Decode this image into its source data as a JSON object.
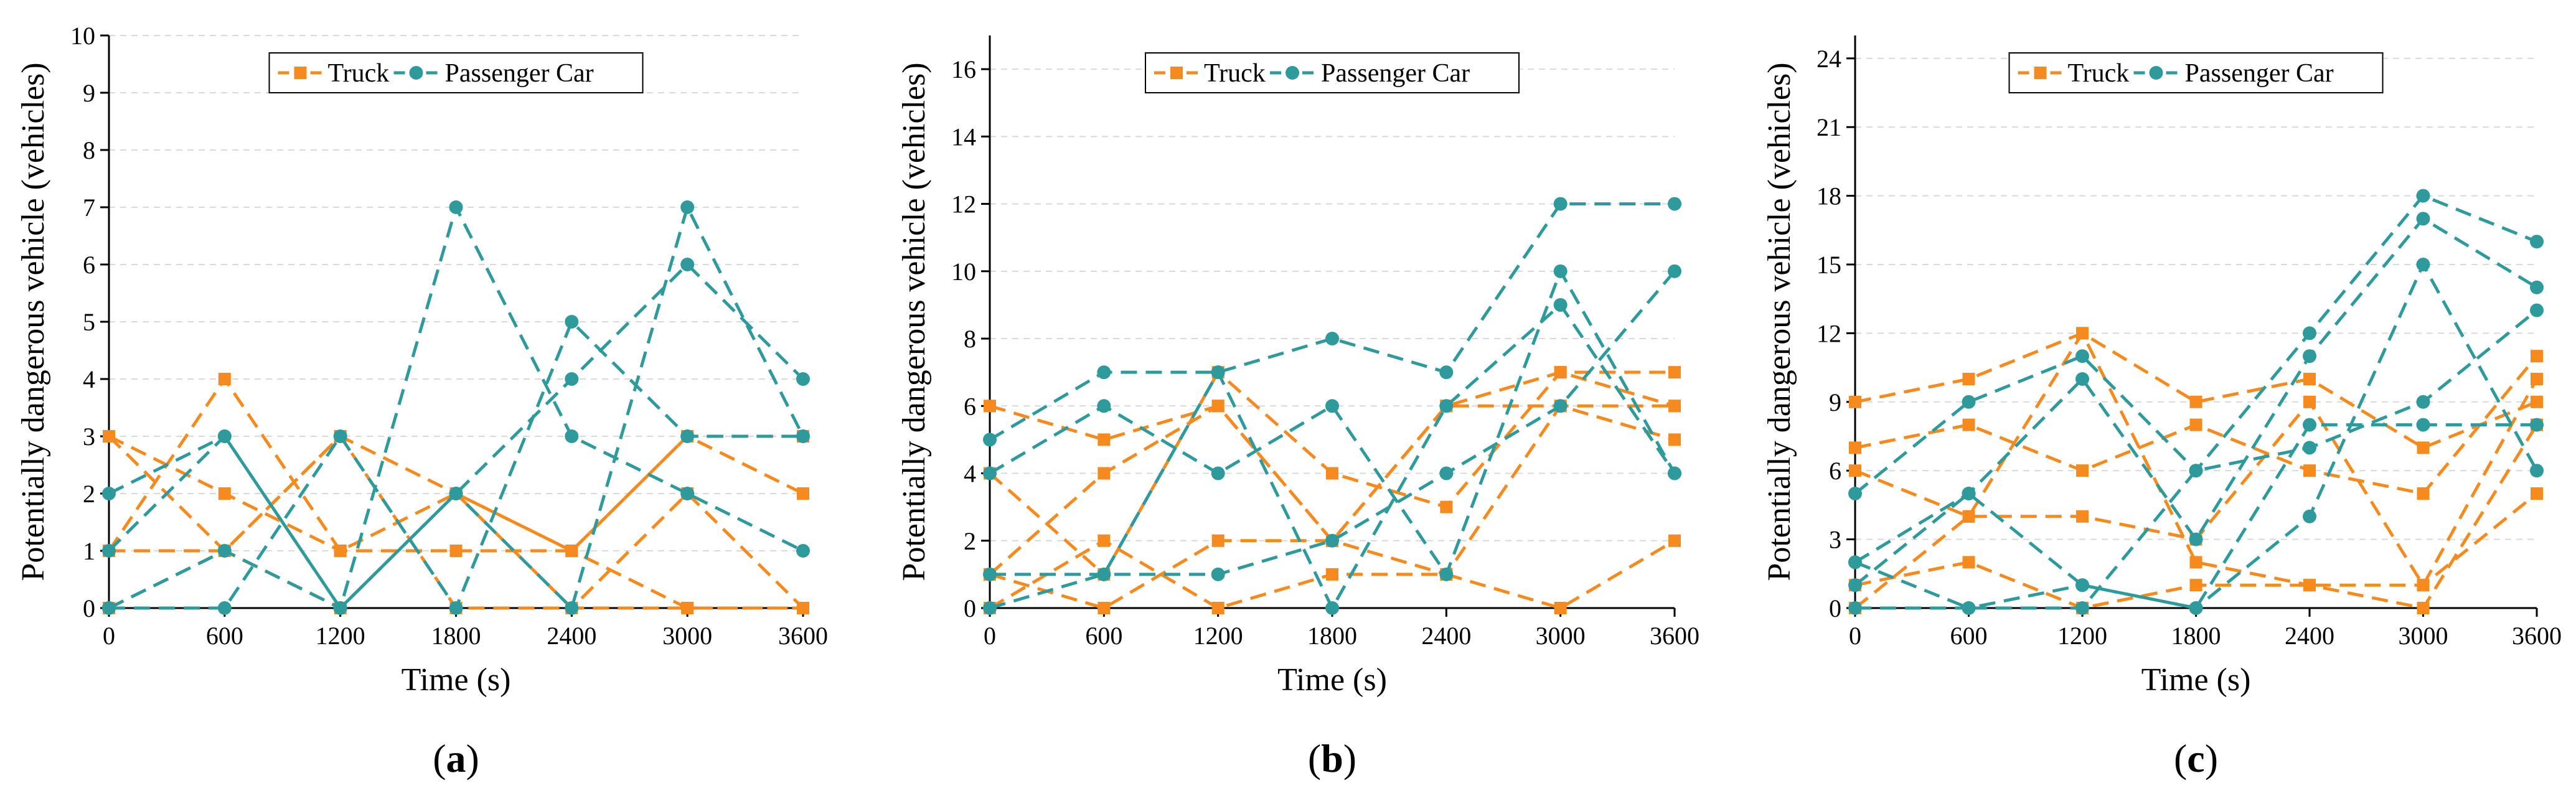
{
  "colors": {
    "truck": "#F58A1F",
    "car": "#2E9A9C"
  },
  "legend": {
    "truck_label": "Truck",
    "car_label": "Passenger Car",
    "placement": "top-center"
  },
  "chart_data": [
    {
      "type": "line",
      "panel_label": "a",
      "xlabel": "Time (s)",
      "ylabel": "Potentially dangerous vehicle (vehicles)",
      "x": [
        0,
        600,
        1200,
        1800,
        2400,
        3000,
        3600
      ],
      "xlim": [
        0,
        3600
      ],
      "ylim": [
        0,
        10
      ],
      "yticks": [
        0,
        1,
        2,
        3,
        4,
        5,
        6,
        7,
        8,
        9,
        10
      ],
      "grid": true,
      "truck_series": [
        [
          3,
          2,
          1,
          1,
          1,
          3,
          3
        ],
        [
          1,
          4,
          1,
          2,
          1,
          3,
          2
        ],
        [
          1,
          1,
          3,
          0,
          0,
          0,
          0
        ],
        [
          0,
          1,
          0,
          2,
          0,
          2,
          0
        ],
        [
          3,
          1,
          3,
          2,
          1,
          0,
          0
        ]
      ],
      "car_series": [
        [
          2,
          3,
          0,
          7,
          3,
          2,
          1
        ],
        [
          1,
          3,
          0,
          2,
          0,
          7,
          3
        ],
        [
          0,
          0,
          3,
          0,
          5,
          3,
          3
        ],
        [
          0,
          1,
          0,
          2,
          4,
          6,
          4
        ]
      ]
    },
    {
      "type": "line",
      "panel_label": "b",
      "xlabel": "Time (s)",
      "ylabel": "Potentially dangerous vehicle (vehicles)",
      "x": [
        0,
        600,
        1200,
        1800,
        2400,
        3000,
        3600
      ],
      "xlim": [
        0,
        3600
      ],
      "ylim": [
        0,
        17
      ],
      "yticks": [
        0,
        2,
        4,
        6,
        8,
        10,
        12,
        14,
        16
      ],
      "grid": true,
      "truck_series": [
        [
          6,
          5,
          6,
          2,
          6,
          6,
          6
        ],
        [
          4,
          1,
          7,
          4,
          3,
          7,
          7
        ],
        [
          1,
          4,
          6,
          2,
          1,
          6,
          5
        ],
        [
          0,
          2,
          0,
          1,
          1,
          0,
          2
        ],
        [
          1,
          0,
          2,
          2,
          6,
          7,
          6
        ]
      ],
      "car_series": [
        [
          5,
          7,
          7,
          8,
          7,
          12,
          12
        ],
        [
          4,
          6,
          4,
          6,
          1,
          10,
          4
        ],
        [
          1,
          1,
          1,
          2,
          4,
          6,
          10
        ],
        [
          0,
          1,
          7,
          0,
          6,
          9,
          4
        ]
      ]
    },
    {
      "type": "line",
      "panel_label": "c",
      "xlabel": "Time (s)",
      "ylabel": "Potentially dangerous vehicle (vehicles)",
      "x": [
        0,
        600,
        1200,
        1800,
        2400,
        3000,
        3600
      ],
      "xlim": [
        0,
        3600
      ],
      "ylim": [
        0,
        25
      ],
      "yticks": [
        0,
        3,
        6,
        9,
        12,
        15,
        18,
        21,
        24
      ],
      "grid": true,
      "truck_series": [
        [
          9,
          10,
          12,
          9,
          10,
          7,
          9
        ],
        [
          7,
          8,
          6,
          8,
          6,
          5,
          11
        ],
        [
          6,
          4,
          4,
          3,
          9,
          1,
          10
        ],
        [
          1,
          2,
          0,
          1,
          1,
          1,
          5
        ],
        [
          0,
          4,
          12,
          2,
          1,
          0,
          8
        ]
      ],
      "car_series": [
        [
          5,
          9,
          11,
          6,
          12,
          18,
          16
        ],
        [
          2,
          5,
          10,
          3,
          11,
          17,
          14
        ],
        [
          1,
          5,
          1,
          0,
          4,
          15,
          6
        ],
        [
          2,
          0,
          0,
          6,
          7,
          9,
          13
        ],
        [
          0,
          0,
          1,
          0,
          8,
          8,
          8
        ]
      ]
    }
  ]
}
